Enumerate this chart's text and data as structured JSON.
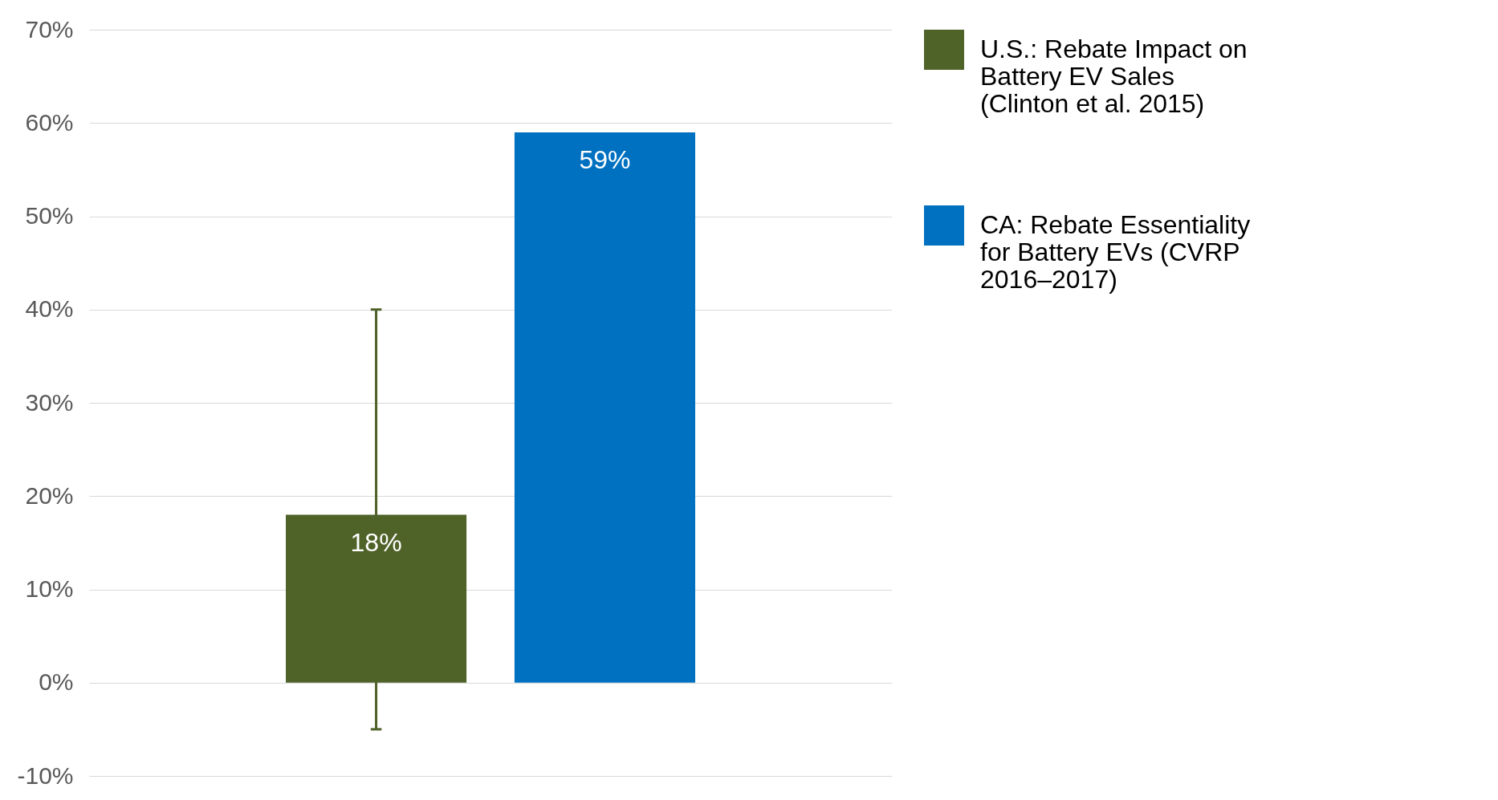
{
  "chart_data": {
    "type": "bar",
    "categories": [
      null,
      null
    ],
    "series": [
      {
        "name": "U.S.: Rebate Impact on Battery EV Sales (Clinton et al. 2015)",
        "color": "#4f6228",
        "values": [
          18,
          null
        ],
        "errors": [
          [
            -5,
            40
          ],
          null
        ]
      },
      {
        "name": "CA: Rebate Essentiality for Battery EVs (CVRP 2016–2017)",
        "color": "#0070c0",
        "values": [
          null,
          59
        ]
      }
    ],
    "ylim": [
      -10,
      70
    ],
    "yticks": [
      {
        "value": -10,
        "label": "-10%"
      },
      {
        "value": 0,
        "label": "0%"
      },
      {
        "value": 10,
        "label": "10%"
      },
      {
        "value": 20,
        "label": "20%"
      },
      {
        "value": 30,
        "label": "30%"
      },
      {
        "value": 40,
        "label": "40%"
      },
      {
        "value": 50,
        "label": "50%"
      },
      {
        "value": 60,
        "label": "60%"
      },
      {
        "value": 70,
        "label": "70%"
      }
    ],
    "value_labels": [
      "18%",
      "59%"
    ],
    "grid": "y",
    "legend": "right",
    "tick_labels": "y"
  }
}
